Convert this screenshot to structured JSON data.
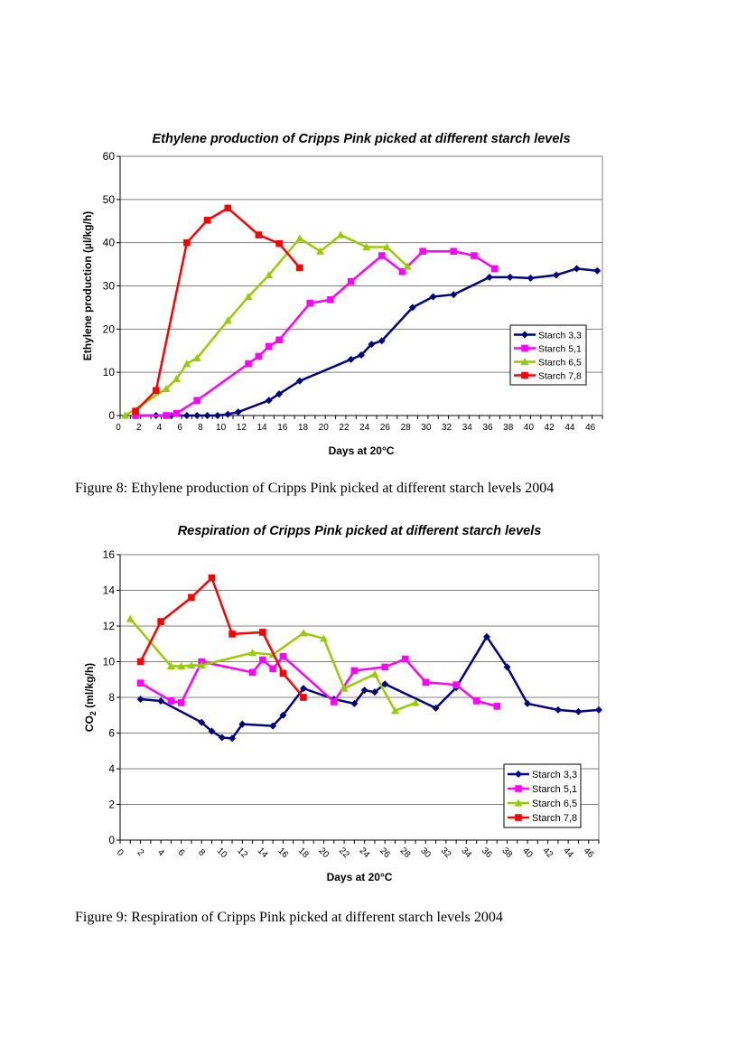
{
  "captions": {
    "fig8": "Figure 8: Ethylene production of Cripps Pink picked at different starch levels 2004",
    "fig9": "Figure 9: Respiration of Cripps Pink picked at different starch levels 2004"
  },
  "chart_data": [
    {
      "type": "line",
      "title": "Ethylene production of Cripps Pink picked at different starch levels",
      "xlabel": "Days at 20°C",
      "ylabel": "Ethylene production (µl/kg/h)",
      "xlim": [
        0,
        47
      ],
      "ylim": [
        0,
        60
      ],
      "xticks": [
        0,
        2,
        4,
        6,
        8,
        10,
        12,
        14,
        16,
        18,
        20,
        22,
        24,
        26,
        28,
        30,
        32,
        34,
        36,
        38,
        40,
        42,
        44,
        46
      ],
      "yticks": [
        0,
        10,
        20,
        30,
        40,
        50,
        60
      ],
      "grid": "horizontal",
      "legend": "right",
      "series": [
        {
          "name": "Starch 3,3",
          "color": "#000080",
          "marker": "diamond",
          "x": [
            1.5,
            3.5,
            5,
            6.5,
            7.5,
            8.5,
            9.5,
            10.5,
            11.5,
            14.5,
            15.5,
            17.5,
            22.5,
            23.5,
            24.5,
            25.5,
            28.5,
            30.5,
            32.5,
            36,
            38,
            40,
            42.5,
            44.5,
            46.5
          ],
          "y": [
            0,
            0,
            0,
            0,
            0,
            0,
            0,
            0.3,
            0.8,
            3.5,
            5,
            8,
            13,
            14,
            16.5,
            17.3,
            25,
            27.5,
            28,
            32,
            32,
            31.8,
            32.5,
            34,
            33.5
          ]
        },
        {
          "name": "Starch 5,1",
          "color": "#FF00FF",
          "marker": "square",
          "x": [
            1.5,
            4.5,
            5.5,
            7.5,
            12.5,
            13.5,
            14.5,
            15.5,
            18.5,
            20.5,
            22.5,
            25.5,
            27.5,
            29.5,
            32.5,
            34.5,
            36.5
          ],
          "y": [
            0,
            0,
            0.5,
            3.5,
            12,
            13.7,
            16,
            17.5,
            26,
            26.8,
            31,
            37,
            33.3,
            38,
            38,
            37,
            34
          ]
        },
        {
          "name": "Starch 6,5",
          "color": "#99CC00",
          "marker": "triangle",
          "x": [
            0.5,
            4.5,
            5.5,
            6.5,
            7.5,
            10.5,
            12.5,
            14.5,
            17.5,
            19.5,
            21.5,
            24,
            26,
            28
          ],
          "y": [
            0,
            6.2,
            8.5,
            12,
            13.3,
            22,
            27.5,
            32.5,
            41,
            38,
            41.8,
            39,
            39,
            34.5
          ]
        },
        {
          "name": "Starch 7,8",
          "color": "#FF0000",
          "marker": "square",
          "x": [
            1.5,
            3.5,
            6.5,
            8.5,
            10.5,
            13.5,
            15.5,
            17.5
          ],
          "y": [
            1,
            5.8,
            40,
            45.2,
            48,
            41.8,
            39.8,
            34.2
          ]
        }
      ]
    },
    {
      "type": "line",
      "title": "Respiration of Cripps Pink picked at different starch levels",
      "xlabel": "Days at 20°C",
      "ylabel": "CO2 (ml/kg/h)",
      "xlim": [
        0,
        47
      ],
      "ylim": [
        0,
        16
      ],
      "xticks": [
        0,
        2,
        4,
        6,
        8,
        10,
        12,
        14,
        16,
        18,
        20,
        22,
        24,
        26,
        28,
        30,
        32,
        34,
        36,
        38,
        40,
        42,
        44,
        46
      ],
      "yticks": [
        0,
        2,
        4,
        6,
        8,
        10,
        12,
        14,
        16
      ],
      "grid": "horizontal",
      "legend": "right",
      "series": [
        {
          "name": "Starch 3,3",
          "color": "#000080",
          "marker": "diamond",
          "x": [
            2,
            4,
            8,
            9,
            10,
            11,
            12,
            15,
            16,
            18,
            21,
            23,
            24,
            25,
            26,
            31,
            33,
            36,
            38,
            40,
            43,
            45,
            47
          ],
          "y": [
            7.9,
            7.8,
            6.6,
            6.1,
            5.75,
            5.7,
            6.5,
            6.4,
            7,
            8.5,
            7.9,
            7.65,
            8.4,
            8.3,
            8.75,
            7.4,
            8.55,
            11.4,
            9.7,
            7.65,
            7.3,
            7.2,
            7.3
          ]
        },
        {
          "name": "Starch 5,1",
          "color": "#FF00FF",
          "marker": "square",
          "x": [
            2,
            5,
            6,
            8,
            13,
            14,
            15,
            16,
            21,
            23,
            26,
            28,
            30,
            33,
            35,
            37
          ],
          "y": [
            8.8,
            7.8,
            7.7,
            10,
            9.4,
            10.1,
            9.6,
            10.3,
            7.75,
            9.5,
            9.7,
            10.15,
            8.85,
            8.7,
            7.8,
            7.5
          ]
        },
        {
          "name": "Starch 6,5",
          "color": "#99CC00",
          "marker": "triangle",
          "x": [
            1,
            5,
            6,
            7,
            8,
            13,
            15,
            18,
            20,
            22,
            25,
            27,
            29
          ],
          "y": [
            12.4,
            9.75,
            9.75,
            9.8,
            9.8,
            10.5,
            10.4,
            11.6,
            11.3,
            8.5,
            9.3,
            7.25,
            7.7
          ]
        },
        {
          "name": "Starch 7,8",
          "color": "#FF0000",
          "marker": "square",
          "x": [
            2,
            4,
            7,
            9,
            11,
            14,
            16,
            18
          ],
          "y": [
            10,
            12.25,
            13.6,
            14.7,
            11.55,
            11.65,
            9.35,
            8
          ]
        }
      ]
    }
  ]
}
